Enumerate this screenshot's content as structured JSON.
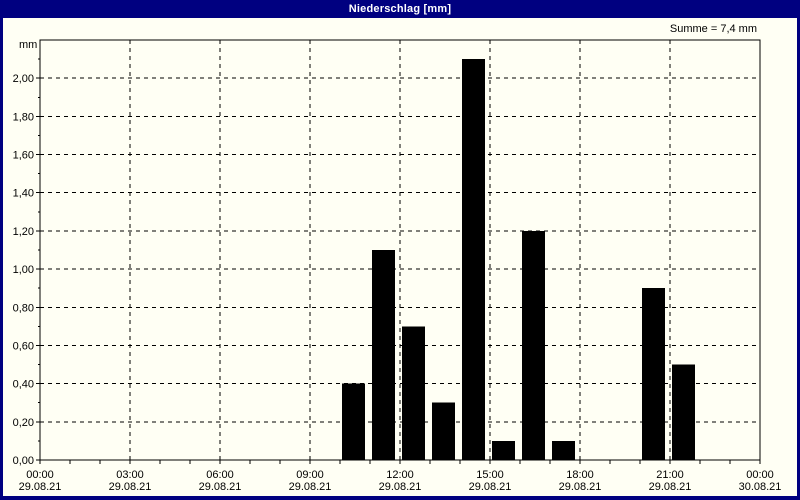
{
  "window": {
    "title": "Niederschlag [mm]"
  },
  "chart_data": {
    "type": "bar",
    "title": "Niederschlag [mm]",
    "unit_label": "mm",
    "sum_label": "Summe = 7,4 mm",
    "sum_value_mm": 7.4,
    "xlabel": "",
    "ylabel": "mm",
    "ylim": [
      0,
      2.2
    ],
    "x_hours_range": [
      0,
      24
    ],
    "grid": "dashed",
    "legend": "none",
    "colors": {
      "bar": "#000000",
      "frame": "#000000",
      "grid": "#000000",
      "titlebar": "#000080",
      "title_text": "#ffffff",
      "background": "#fffff4"
    },
    "y_ticks": [
      {
        "value": 0.0,
        "label": "0,00"
      },
      {
        "value": 0.2,
        "label": "0,20"
      },
      {
        "value": 0.4,
        "label": "0,40"
      },
      {
        "value": 0.6,
        "label": "0,60"
      },
      {
        "value": 0.8,
        "label": "0,80"
      },
      {
        "value": 1.0,
        "label": "1,00"
      },
      {
        "value": 1.2,
        "label": "1,20"
      },
      {
        "value": 1.4,
        "label": "1,40"
      },
      {
        "value": 1.6,
        "label": "1,60"
      },
      {
        "value": 1.8,
        "label": "1,80"
      },
      {
        "value": 2.0,
        "label": "2,00"
      }
    ],
    "x_ticks": [
      {
        "hour": 0,
        "time": "00:00",
        "date": "29.08.21"
      },
      {
        "hour": 3,
        "time": "03:00",
        "date": "29.08.21"
      },
      {
        "hour": 6,
        "time": "06:00",
        "date": "29.08.21"
      },
      {
        "hour": 9,
        "time": "09:00",
        "date": "29.08.21"
      },
      {
        "hour": 12,
        "time": "12:00",
        "date": "29.08.21"
      },
      {
        "hour": 15,
        "time": "15:00",
        "date": "29.08.21"
      },
      {
        "hour": 18,
        "time": "18:00",
        "date": "29.08.21"
      },
      {
        "hour": 21,
        "time": "21:00",
        "date": "29.08.21"
      },
      {
        "hour": 24,
        "time": "00:00",
        "date": "30.08.21"
      }
    ],
    "bars": [
      {
        "start_hour": 10,
        "end_hour": 11,
        "value": 0.4
      },
      {
        "start_hour": 11,
        "end_hour": 12,
        "value": 1.1
      },
      {
        "start_hour": 12,
        "end_hour": 13,
        "value": 0.7
      },
      {
        "start_hour": 13,
        "end_hour": 14,
        "value": 0.3
      },
      {
        "start_hour": 14,
        "end_hour": 15,
        "value": 2.1
      },
      {
        "start_hour": 15,
        "end_hour": 16,
        "value": 0.1
      },
      {
        "start_hour": 16,
        "end_hour": 17,
        "value": 1.2
      },
      {
        "start_hour": 17,
        "end_hour": 18,
        "value": 0.1
      },
      {
        "start_hour": 20,
        "end_hour": 21,
        "value": 0.9
      },
      {
        "start_hour": 21,
        "end_hour": 22,
        "value": 0.5
      }
    ]
  }
}
